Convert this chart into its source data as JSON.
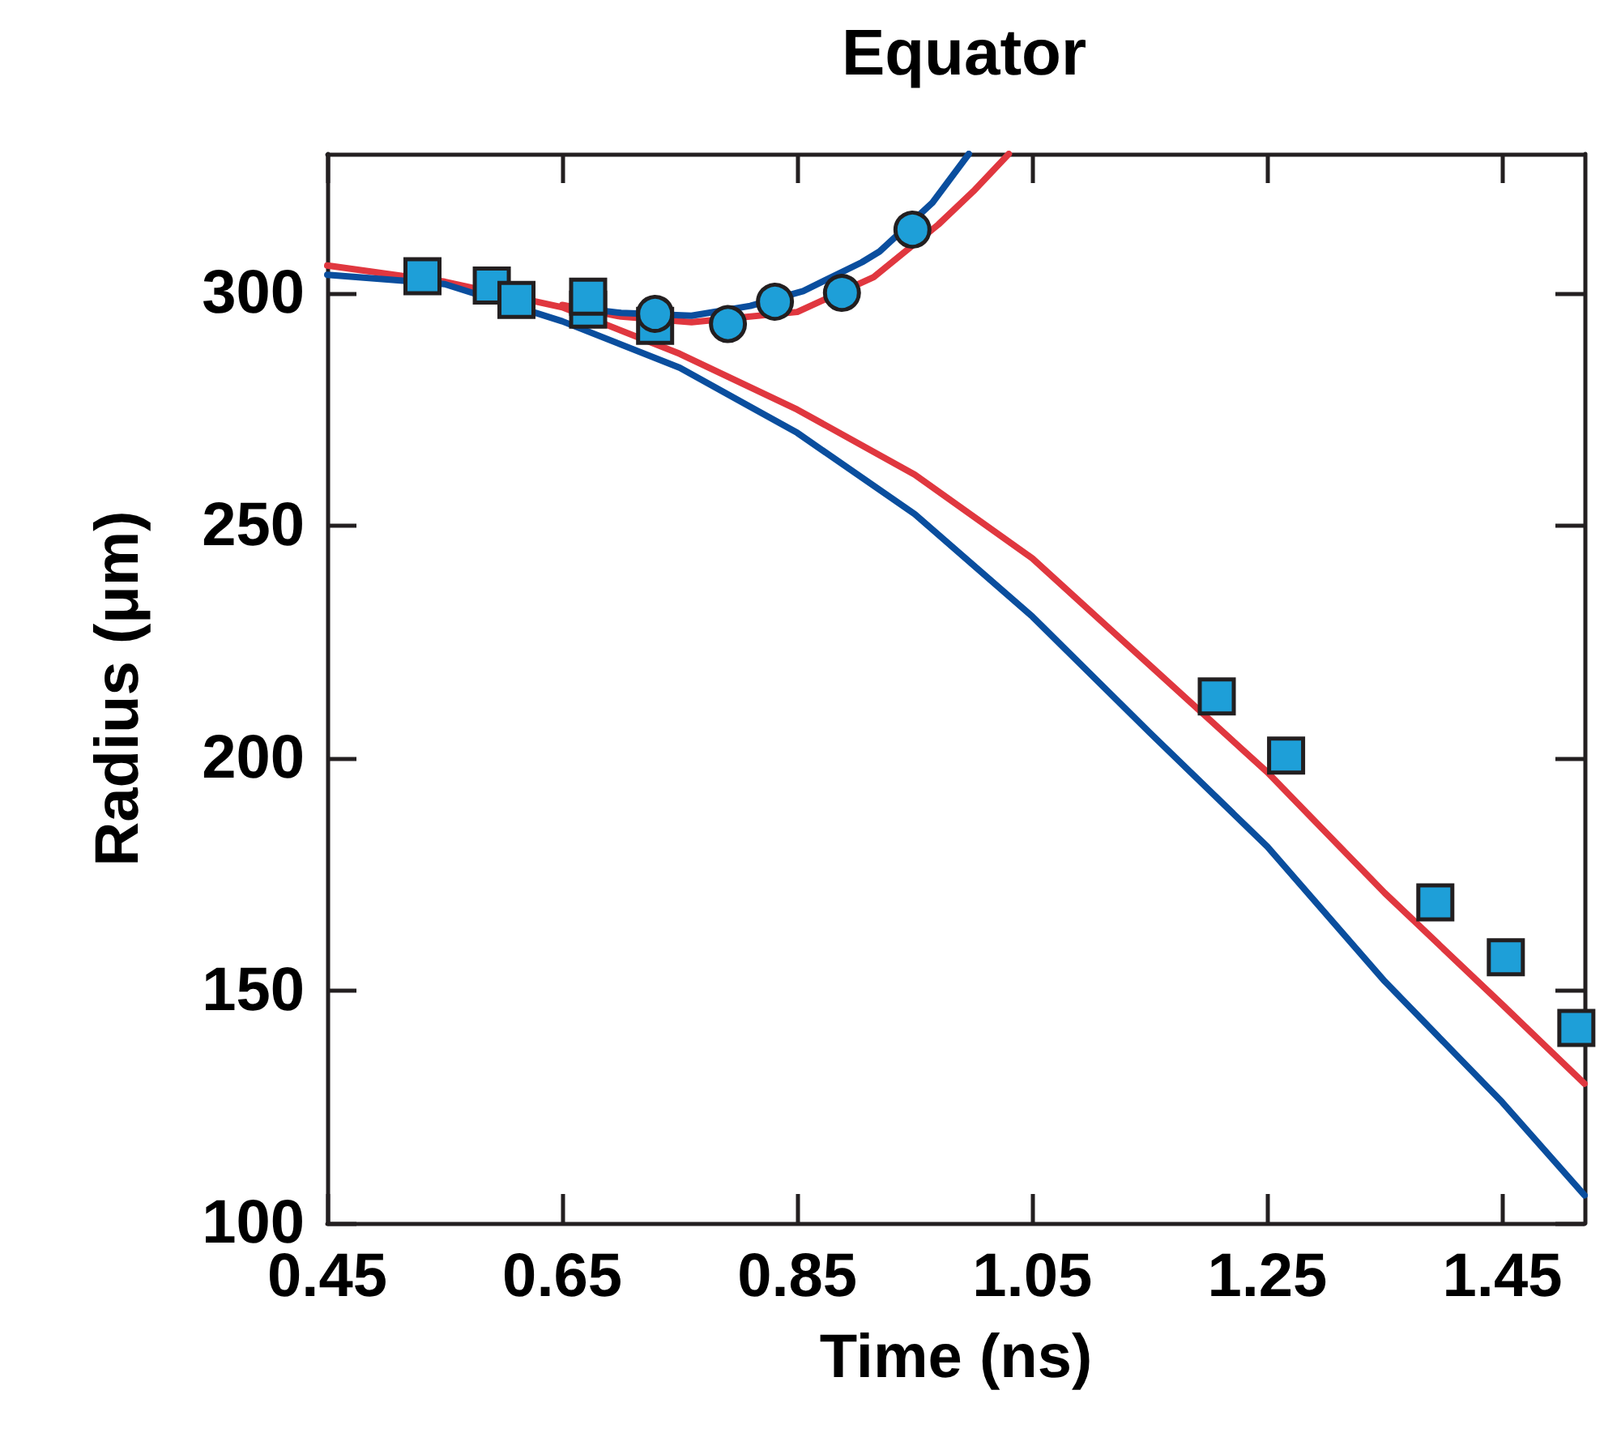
{
  "chart_data": {
    "type": "line",
    "title": "Equator",
    "xlabel": "Time (ns)",
    "ylabel": "Radius (μm)",
    "xlim": [
      0.45,
      1.52
    ],
    "xticks": [
      0.45,
      0.65,
      0.85,
      1.05,
      1.25,
      1.45
    ],
    "ylim": [
      100,
      330
    ],
    "yticks": [
      100,
      150,
      200,
      250,
      300
    ],
    "series": [
      {
        "marker": "none",
        "color": "#e0373f",
        "x": [
          0.45,
          0.55,
          0.65,
          0.75,
          0.85,
          0.95,
          1.05,
          1.15,
          1.25,
          1.35,
          1.45,
          1.52
        ],
        "values": [
          306,
          302.5,
          297,
          287,
          275,
          261,
          243,
          220,
          197,
          171,
          147,
          130
        ]
      },
      {
        "marker": "none",
        "color": "#0a4e9e",
        "x": [
          0.45,
          0.55,
          0.65,
          0.75,
          0.85,
          0.95,
          1.05,
          1.15,
          1.25,
          1.35,
          1.45,
          1.52
        ],
        "values": [
          304,
          302,
          294,
          284,
          270,
          252.5,
          230.5,
          205.5,
          181,
          152,
          126,
          106
        ]
      },
      {
        "marker": "none",
        "color": "#e0373f",
        "x": [
          0.65,
          0.7,
          0.76,
          0.85,
          0.915,
          0.97,
          1.0,
          1.03
        ],
        "values": [
          297.5,
          295,
          293.8,
          296,
          303.5,
          314.8,
          322,
          330
        ]
      },
      {
        "marker": "none",
        "color": "#0a4e9e",
        "x": [
          0.66,
          0.7,
          0.76,
          0.81,
          0.855,
          0.905,
          0.92,
          0.965,
          0.996
        ],
        "values": [
          297,
          295.8,
          295.2,
          297.3,
          300.5,
          306.7,
          309,
          319.5,
          330
        ]
      },
      {
        "type": "scatter",
        "marker": "square",
        "color": "#1e9fd8",
        "x": [
          0.531,
          0.59,
          0.611,
          0.672,
          0.672,
          0.729,
          1.207,
          1.266,
          1.393,
          1.453,
          1.513
        ],
        "values": [
          303.7,
          301.7,
          298.6,
          296.5,
          299.3,
          293,
          213.3,
          200.6,
          169,
          157.2,
          142
        ]
      },
      {
        "type": "scatter",
        "marker": "circle",
        "color": "#1e9fd8",
        "x": [
          0.729,
          0.791,
          0.831,
          0.888,
          0.948
        ],
        "values": [
          295.6,
          293.4,
          298.2,
          300.1,
          313.7
        ]
      }
    ]
  }
}
